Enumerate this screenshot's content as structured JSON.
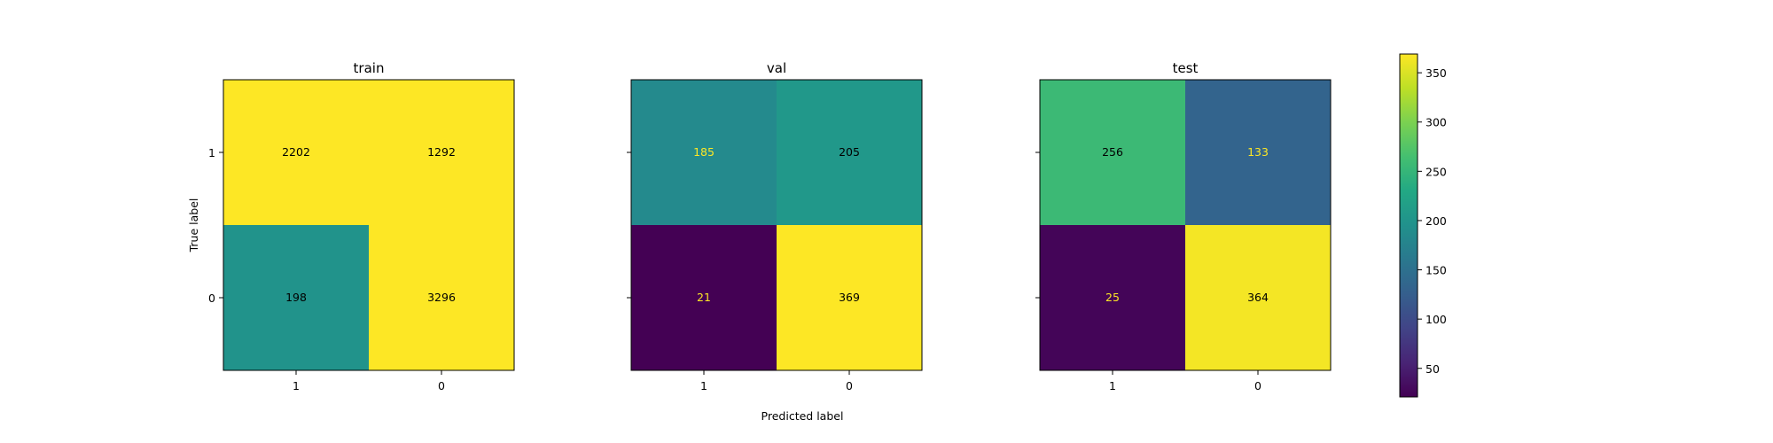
{
  "chart_data": {
    "type": "heatmap",
    "colormap": "viridis",
    "xlabel": "Predicted label",
    "ylabel": "True label",
    "categories": [
      "1",
      "0"
    ],
    "panels": [
      {
        "title": "train",
        "matrix": [
          [
            2202,
            1292
          ],
          [
            198,
            3296
          ]
        ],
        "value_labels": [
          [
            "2202",
            "1292"
          ],
          [
            "198",
            "3296"
          ]
        ]
      },
      {
        "title": "val",
        "matrix": [
          [
            185,
            205
          ],
          [
            21,
            369
          ]
        ],
        "value_labels": [
          [
            "185",
            "205"
          ],
          [
            "21",
            "369"
          ]
        ]
      },
      {
        "title": "test",
        "matrix": [
          [
            256,
            133
          ],
          [
            25,
            364
          ]
        ],
        "value_labels": [
          [
            "256",
            "133"
          ],
          [
            "25",
            "364"
          ]
        ]
      }
    ],
    "colorbar": {
      "range": [
        21,
        369
      ],
      "ticks": [
        50,
        100,
        150,
        200,
        250,
        300,
        350
      ],
      "tick_labels": [
        "50",
        "100",
        "150",
        "200",
        "250",
        "300",
        "350"
      ]
    }
  }
}
